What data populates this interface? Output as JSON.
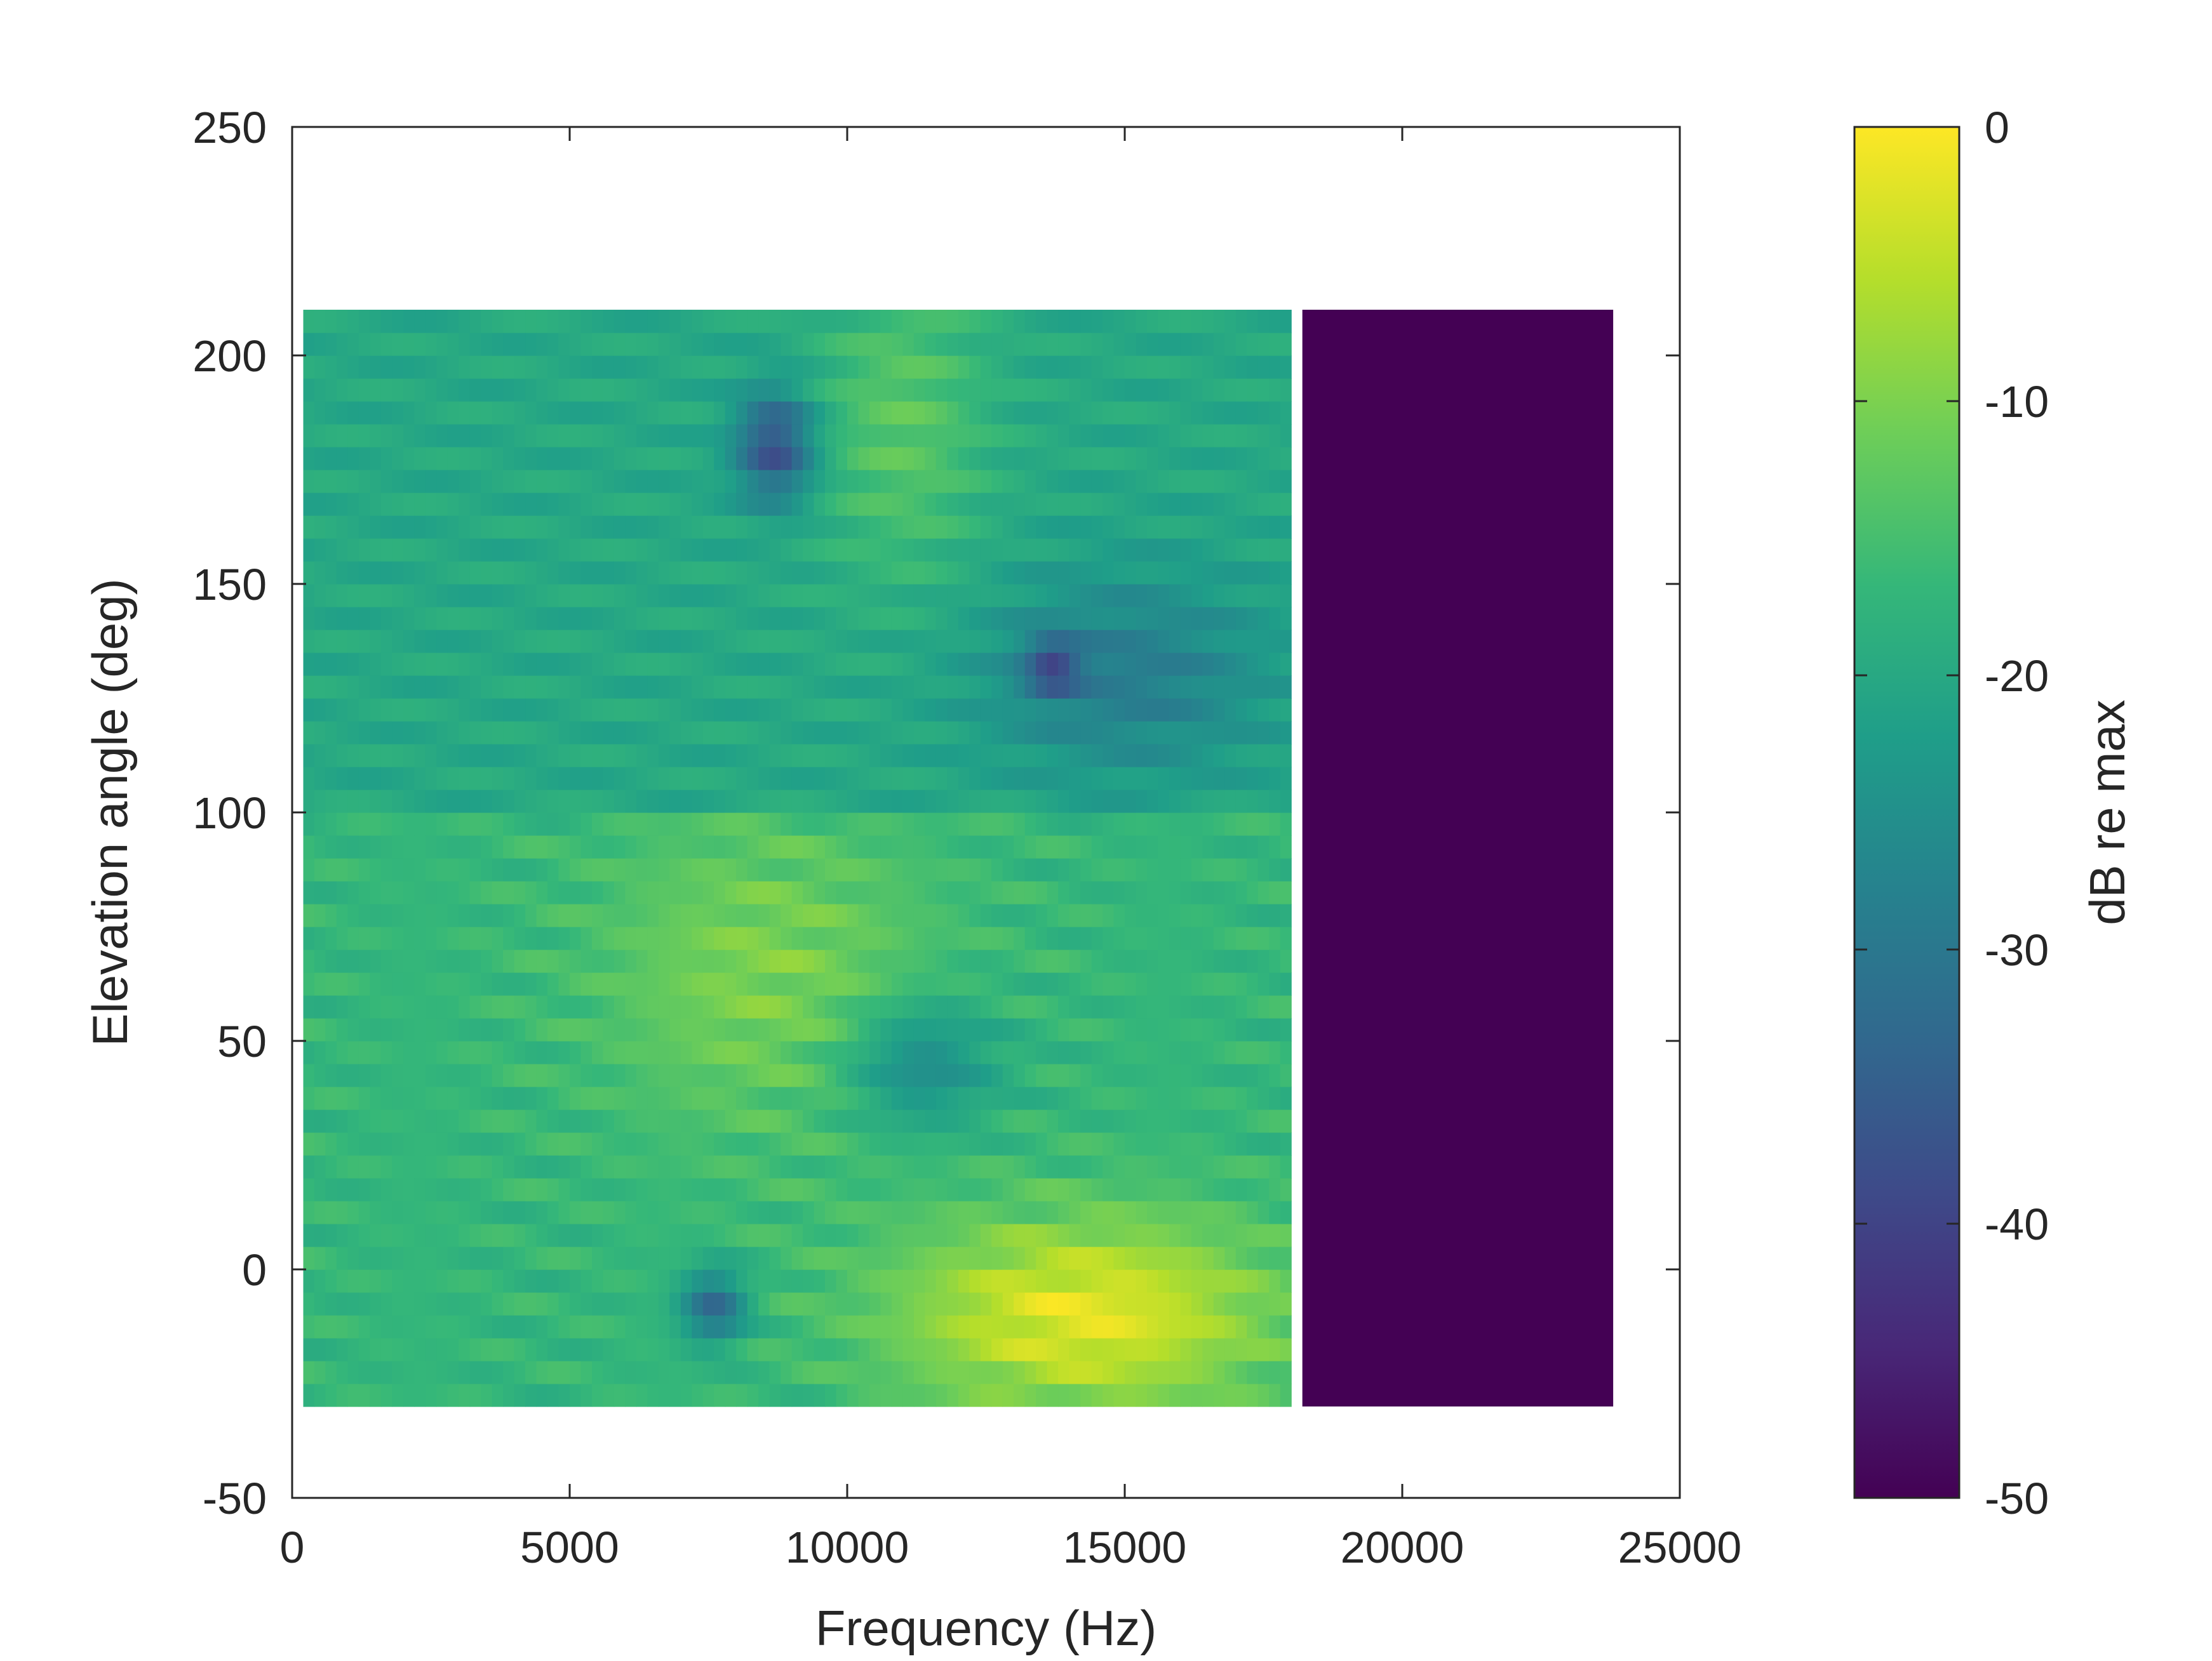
{
  "chart_data": {
    "type": "heatmap",
    "title": "",
    "xlabel": "Frequency (Hz)",
    "ylabel": "Elevation angle (deg)",
    "xlim": [
      0,
      25000
    ],
    "ylim": [
      -50,
      250
    ],
    "xticks": [
      0,
      5000,
      10000,
      15000,
      20000,
      25000
    ],
    "xtick_labels": [
      "0",
      "5000",
      "10000",
      "15000",
      "20000",
      "25000"
    ],
    "yticks": [
      -50,
      0,
      50,
      100,
      150,
      200,
      250
    ],
    "ytick_labels": [
      "-50",
      "0",
      "50",
      "100",
      "150",
      "200",
      "250"
    ],
    "grid": false,
    "colormap": "viridis",
    "colorbar": {
      "label": "dB re max",
      "range": [
        -50,
        0
      ],
      "ticks": [
        0,
        -10,
        -20,
        -30,
        -40,
        -50
      ],
      "tick_labels": [
        "0",
        "-10",
        "-20",
        "-30",
        "-40",
        "-50"
      ]
    },
    "data_extent": {
      "freq_hz": [
        200,
        23800
      ],
      "elevation_deg": [
        -30,
        210
      ],
      "nodata_gap_hz": [
        17900,
        18200
      ],
      "floor_region_hz": [
        18200,
        23800
      ],
      "floor_value_db": -50
    },
    "representative_values_db": [
      {
        "region": "elev 100-210, freq 200-7000",
        "value": -20
      },
      {
        "region": "elev 150-210, freq 9000-13000",
        "value": -12
      },
      {
        "region": "elev 110-150, freq 13000-18000",
        "value": -30
      },
      {
        "region": "elev 170-195, freq 7500-9500",
        "value": -40
      },
      {
        "region": "elev -30-100, freq 200-3000",
        "value": -18
      },
      {
        "region": "elev 40-100, freq 7000-11000",
        "value": -10
      },
      {
        "region": "elev 30-60, freq 10000-13000",
        "value": -28
      },
      {
        "region": "elev -30-20, freq 11000-18000",
        "value": -3
      },
      {
        "region": "elev -15-5, freq 7000-9000",
        "value": -35
      },
      {
        "region": "elev -30-210, freq 18200-23800",
        "value": -50
      }
    ]
  }
}
